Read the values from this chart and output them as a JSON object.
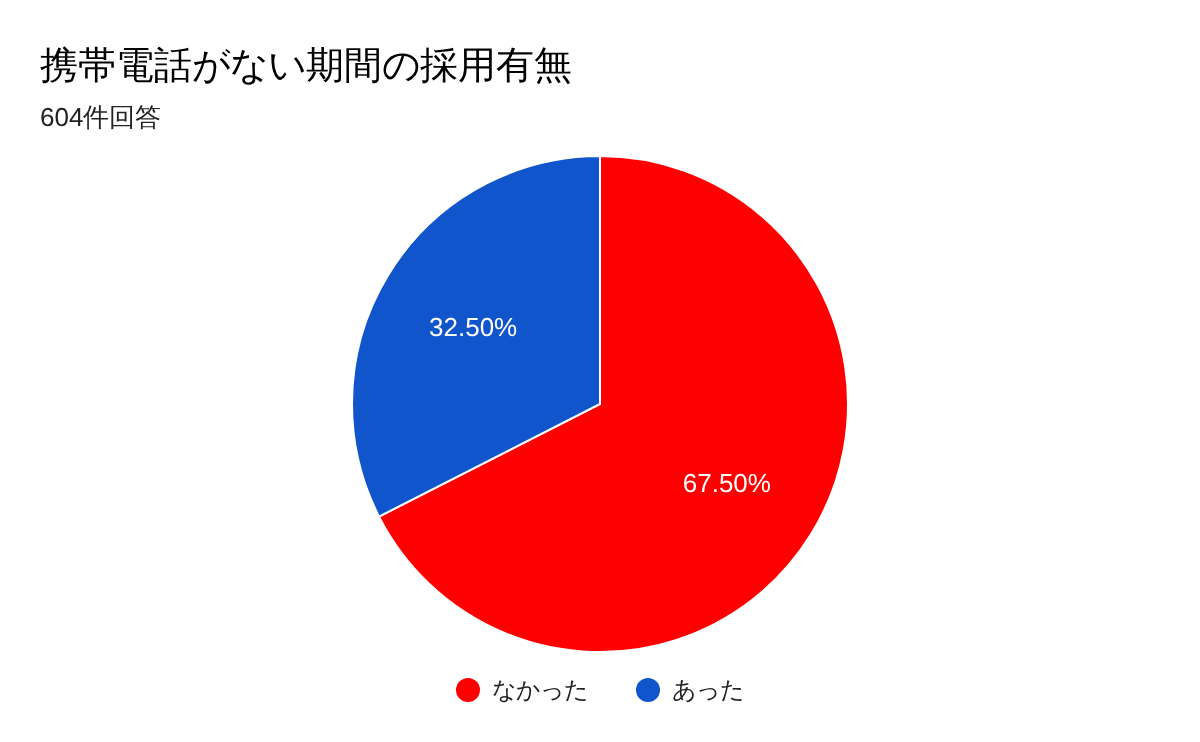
{
  "chart_data": {
    "type": "pie",
    "title": "携帯電話がない期間の採用有無",
    "subtitle": "604件回答",
    "categories": [
      "なかった",
      "あった"
    ],
    "values": [
      67.5,
      32.5
    ],
    "colors": [
      "#ff0000",
      "#1155cc"
    ],
    "value_labels": [
      "67.50%",
      "32.50%"
    ],
    "legend": "bottom"
  }
}
